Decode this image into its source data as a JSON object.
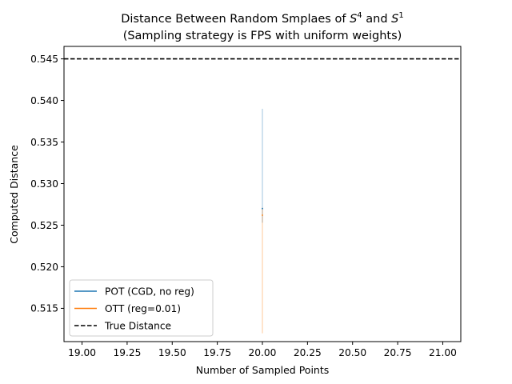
{
  "chart_data": {
    "type": "line",
    "title_line1_pre": "Distance Between Random Smplaes of ",
    "title_s1": "S",
    "title_s1_exp": "4",
    "title_mid": " and ",
    "title_s2": "S",
    "title_s2_exp": "1",
    "title_line2": "(Sampling strategy is FPS with uniform weights)",
    "xlabel": "Number of Sampled Points",
    "ylabel": "Computed Distance",
    "xlim": [
      18.9,
      21.1
    ],
    "ylim": [
      0.511,
      0.5465
    ],
    "xticks": [
      19.0,
      19.25,
      19.5,
      19.75,
      20.0,
      20.25,
      20.5,
      20.75,
      21.0
    ],
    "xtick_labels": [
      "19.00",
      "19.25",
      "19.50",
      "19.75",
      "20.00",
      "20.25",
      "20.50",
      "20.75",
      "21.00"
    ],
    "yticks": [
      0.515,
      0.52,
      0.525,
      0.53,
      0.535,
      0.54,
      0.545
    ],
    "ytick_labels": [
      "0.515",
      "0.520",
      "0.525",
      "0.530",
      "0.535",
      "0.540",
      "0.545"
    ],
    "grid": false,
    "legend_position": "lower-left",
    "series": [
      {
        "name": "POT (CGD, no reg)",
        "color": "#1f77b4",
        "x": [
          20.0
        ],
        "y": [
          0.527
        ],
        "band": [
          0.5253,
          0.539
        ]
      },
      {
        "name": "OTT (reg=0.01)",
        "color": "#ff7f0e",
        "x": [
          20.0
        ],
        "y": [
          0.5262
        ],
        "band": [
          0.512,
          0.5271
        ]
      }
    ],
    "reference_line": {
      "name": "True Distance",
      "y": 0.545,
      "color": "#000000",
      "style": "dashed"
    }
  }
}
